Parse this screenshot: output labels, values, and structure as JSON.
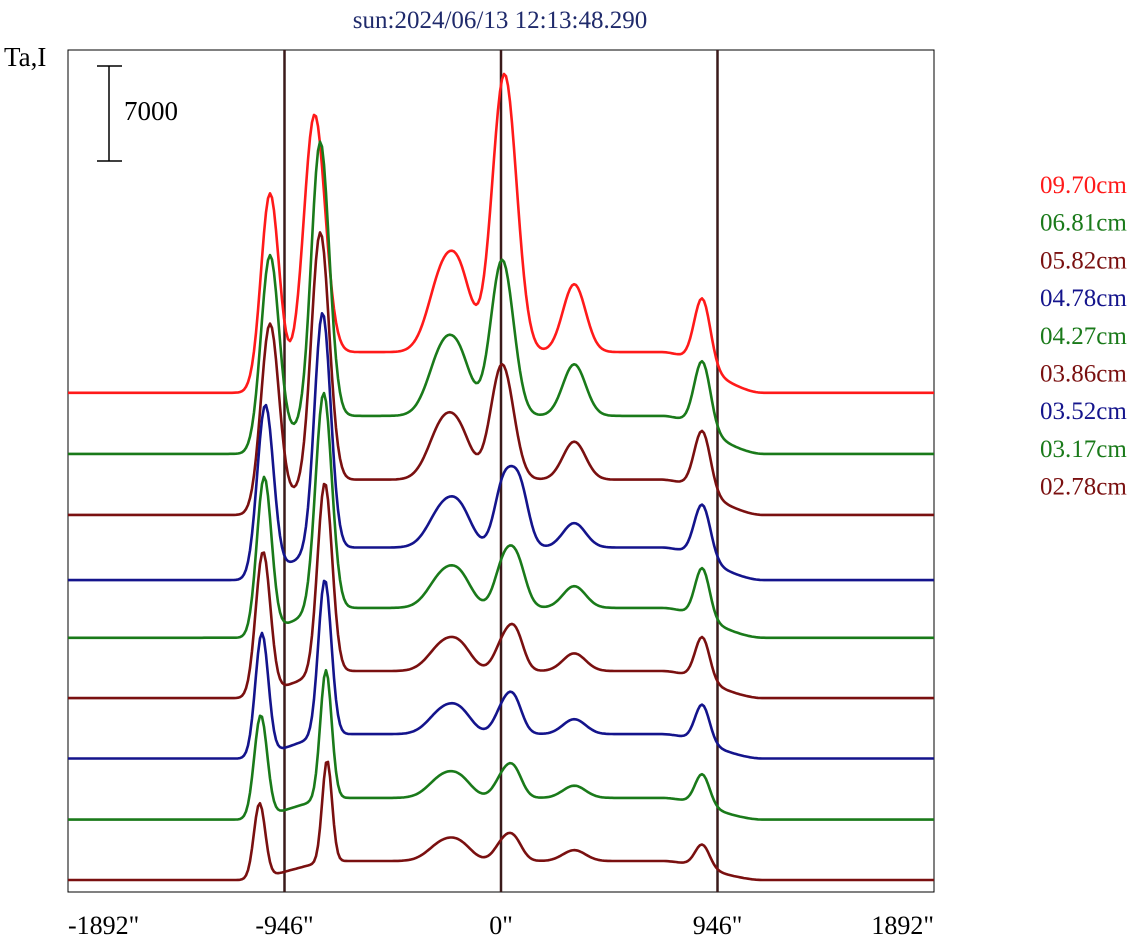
{
  "title": "sun:2024/06/13 12:13:48.290",
  "ylabel": "Ta,I",
  "scale_bar_label": "7000",
  "chart_data": {
    "type": "line",
    "xlim": [
      -1892,
      1892
    ],
    "x_ticks": [
      -1892,
      -946,
      0,
      946,
      1892
    ],
    "x_tick_labels": [
      "-1892\"",
      "-946\"",
      "0\"",
      "946\"",
      "1892\""
    ],
    "vertical_lines": [
      -946,
      0,
      946
    ],
    "scale_bar": 7000,
    "series": [
      {
        "name": "09.70cm",
        "color": "#ff1a1a",
        "offset": 27350,
        "peaks": [
          [
            -1010,
            55,
            14000
          ],
          [
            -815,
            65,
            18000
          ],
          [
            -250,
            90,
            6000
          ],
          [
            -170,
            70,
            3500
          ],
          [
            15,
            75,
            20500
          ],
          [
            320,
            70,
            5000
          ],
          [
            880,
            50,
            5000
          ]
        ]
      },
      {
        "name": "06.81cm",
        "color": "#1a7a1a",
        "offset": 22850,
        "peaks": [
          [
            -1010,
            55,
            14000
          ],
          [
            -790,
            55,
            20500
          ],
          [
            -250,
            90,
            5000
          ],
          [
            -170,
            70,
            2500
          ],
          [
            5,
            70,
            11500
          ],
          [
            320,
            70,
            3800
          ],
          [
            880,
            50,
            5000
          ]
        ]
      },
      {
        "name": "05.82cm",
        "color": "#7a1010",
        "offset": 18350,
        "peaks": [
          [
            -1010,
            55,
            13500
          ],
          [
            -790,
            55,
            18500
          ],
          [
            -250,
            90,
            4200
          ],
          [
            -170,
            70,
            2000
          ],
          [
            5,
            70,
            8500
          ],
          [
            320,
            70,
            2800
          ],
          [
            880,
            50,
            4500
          ]
        ]
      },
      {
        "name": "04.78cm",
        "color": "#14148c",
        "offset": 13550,
        "peaks": [
          [
            -1030,
            50,
            12500
          ],
          [
            -780,
            50,
            17500
          ],
          [
            -250,
            90,
            3000
          ],
          [
            -170,
            70,
            1800
          ],
          [
            10,
            55,
            4500
          ],
          [
            80,
            55,
            4500
          ],
          [
            320,
            70,
            1800
          ],
          [
            880,
            50,
            4000
          ]
        ]
      },
      {
        "name": "04.27cm",
        "color": "#1a7a1a",
        "offset": 9300,
        "peaks": [
          [
            -1035,
            45,
            11500
          ],
          [
            -775,
            50,
            16000
          ],
          [
            -250,
            90,
            2500
          ],
          [
            -170,
            70,
            1500
          ],
          [
            10,
            55,
            3000
          ],
          [
            70,
            55,
            3200
          ],
          [
            320,
            70,
            1600
          ],
          [
            880,
            45,
            3700
          ]
        ]
      },
      {
        "name": "03.86cm",
        "color": "#7a1010",
        "offset": 4850,
        "peaks": [
          [
            -1040,
            45,
            10500
          ],
          [
            -770,
            45,
            14000
          ],
          [
            -250,
            90,
            2000
          ],
          [
            -170,
            70,
            1200
          ],
          [
            10,
            55,
            2000
          ],
          [
            65,
            50,
            2500
          ],
          [
            320,
            70,
            1300
          ],
          [
            880,
            45,
            3200
          ]
        ]
      },
      {
        "name": "03.52cm",
        "color": "#14148c",
        "offset": 400,
        "peaks": [
          [
            -1045,
            40,
            9000
          ],
          [
            -770,
            40,
            11500
          ],
          [
            -250,
            90,
            1800
          ],
          [
            -170,
            70,
            1100
          ],
          [
            10,
            55,
            1800
          ],
          [
            60,
            50,
            2100
          ],
          [
            320,
            70,
            1100
          ],
          [
            880,
            45,
            2800
          ]
        ]
      },
      {
        "name": "03.17cm",
        "color": "#1a7a1a",
        "offset": -4100,
        "peaks": [
          [
            -1050,
            40,
            7500
          ],
          [
            -765,
            35,
            9500
          ],
          [
            -250,
            90,
            1600
          ],
          [
            -170,
            70,
            900
          ],
          [
            10,
            55,
            1500
          ],
          [
            60,
            50,
            1700
          ],
          [
            320,
            70,
            900
          ],
          [
            880,
            45,
            2300
          ]
        ]
      },
      {
        "name": "02.78cm",
        "color": "#7a1010",
        "offset": -8550,
        "peaks": [
          [
            -1055,
            35,
            5500
          ],
          [
            -760,
            30,
            7500
          ],
          [
            -250,
            90,
            1400
          ],
          [
            -170,
            70,
            800
          ],
          [
            10,
            55,
            1300
          ],
          [
            60,
            50,
            1300
          ],
          [
            320,
            70,
            800
          ],
          [
            880,
            45,
            1700
          ]
        ]
      }
    ]
  }
}
